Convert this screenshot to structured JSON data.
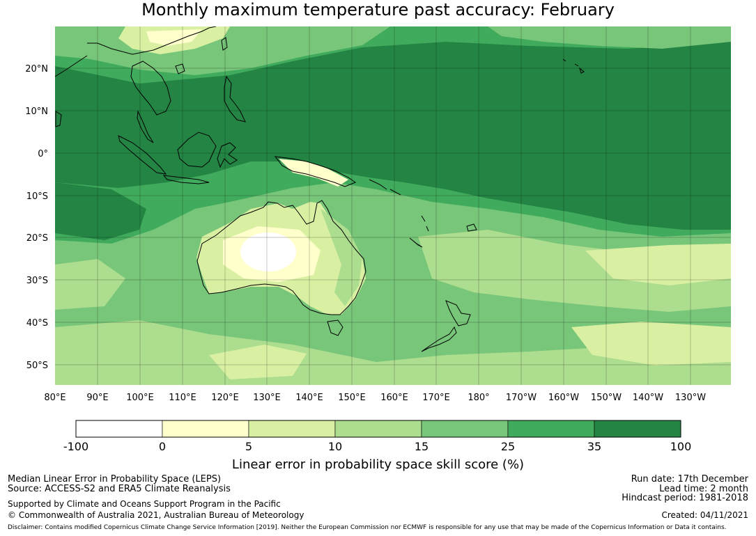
{
  "title": "Monthly maximum temperature past accuracy: February",
  "map": {
    "lat_labels": [
      "20°N",
      "10°N",
      "0°",
      "10°S",
      "20°S",
      "30°S",
      "40°S",
      "50°S"
    ],
    "lon_labels": [
      "80°E",
      "90°E",
      "100°E",
      "110°E",
      "120°E",
      "130°E",
      "140°E",
      "150°E",
      "160°E",
      "170°E",
      "180°",
      "170°W",
      "160°W",
      "150°W",
      "140°W",
      "130°W"
    ],
    "ocean_color": "#41ab5d",
    "land_outline_color": "#000000"
  },
  "colorbar": {
    "tick_labels": [
      "-100",
      "0",
      "5",
      "10",
      "15",
      "25",
      "35",
      "100"
    ],
    "colors": [
      "#ffffff",
      "#ffffcc",
      "#d9f0a3",
      "#addd8e",
      "#78c679",
      "#41ab5d",
      "#238443"
    ],
    "label": "Linear error in probability space skill score (%)"
  },
  "footer": {
    "left_line1": "Median Linear Error in Probability Space (LEPS)",
    "left_line2": "Source: ACCESS-S2 and ERA5 Climate Reanalysis",
    "left_line3": "Supported by Climate and Oceans Support Program in the Pacific",
    "left_line4": "© Commonwealth of Australia 2021, Australian Bureau of Meteorology",
    "right_line1": "Run date: 17th December",
    "right_line2": "Lead time: 2 month",
    "right_line3": "Hindcast period: 1981-2018",
    "right_line4": "Created: 04/11/2021",
    "disclaimer": "Disclaimer: Contains modified Copernicus Climate Change Service Information [2019]. Neither the European Commission nor ECMWF is responsible for any use that may be made of the Copernicus Information or Data it contains."
  }
}
